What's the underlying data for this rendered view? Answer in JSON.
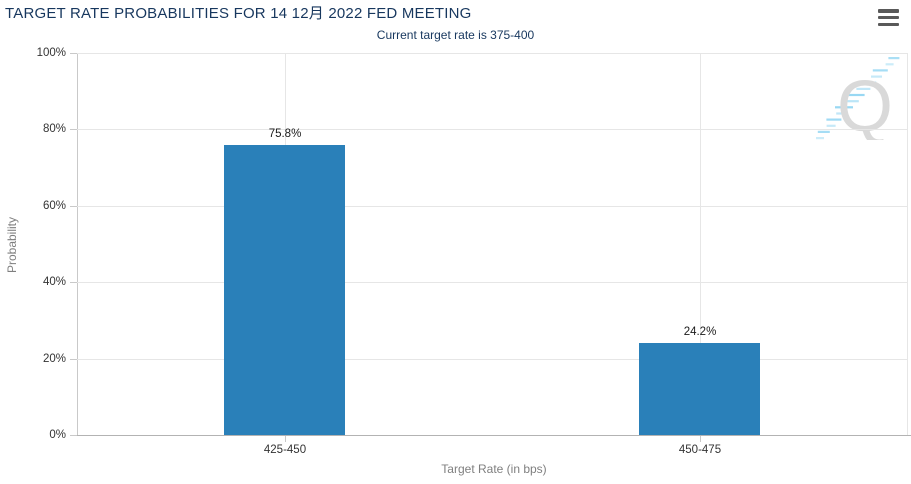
{
  "header": {
    "title": "TARGET RATE PROBABILITIES FOR 14 12月 2022 FED MEETING",
    "subtitle": "Current target rate is 375-400"
  },
  "menu": {
    "icon": "hamburger-menu-icon"
  },
  "watermark": {
    "letter": "Q"
  },
  "chart_data": {
    "type": "bar",
    "title": "TARGET RATE PROBABILITIES FOR 14 12月 2022 FED MEETING",
    "subtitle": "Current target rate is 375-400",
    "categories": [
      "425-450",
      "450-475"
    ],
    "values": [
      75.8,
      24.2
    ],
    "data_labels": [
      "75.8%",
      "24.2%"
    ],
    "xlabel": "Target Rate (in bps)",
    "ylabel": "Probability",
    "ylim": [
      0,
      100
    ],
    "yticks": [
      0,
      20,
      40,
      60,
      80,
      100
    ],
    "ytick_labels": [
      "0%",
      "20%",
      "40%",
      "60%",
      "80%",
      "100%"
    ],
    "grid": true,
    "legend": false,
    "bar_color": "#2a80b9"
  },
  "colors": {
    "title_text": "#17375e",
    "bar": "#2a80b9",
    "gridline": "#e6e6e6",
    "x_axis_line": "#b3b3b3",
    "tick": "#c9c9c9",
    "axis_title_text": "#7f7f7f",
    "tick_label_text": "#333333",
    "menu_icon": "#595959",
    "watermark_gray": "#d9d9d9",
    "watermark_blue": "#8ed4f2"
  }
}
